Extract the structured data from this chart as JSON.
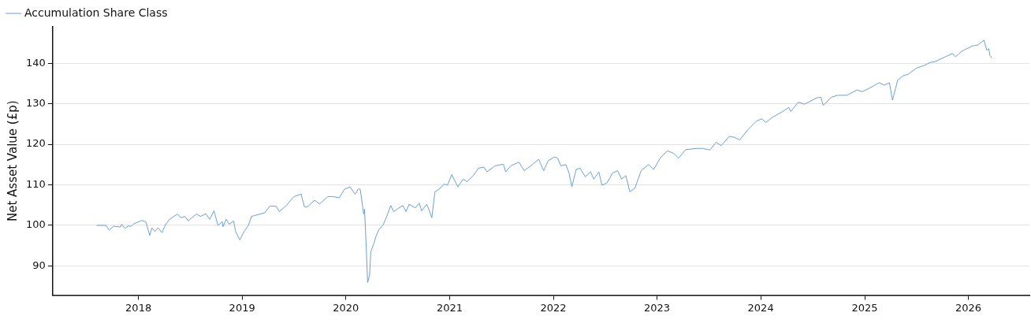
{
  "chart_data": {
    "type": "line",
    "ylabel": "Net Asset Value (£p)",
    "x": [
      "2017-08-07",
      "2017-09-09",
      "2017-09-20",
      "2017-10-05",
      "2017-10-30",
      "2017-11-03",
      "2017-11-14",
      "2017-11-28",
      "2017-12-05",
      "2017-12-16",
      "2018-01-12",
      "2018-01-27",
      "2018-02-10",
      "2018-02-17",
      "2018-02-28",
      "2018-03-11",
      "2018-03-25",
      "2018-04-05",
      "2018-04-20",
      "2018-05-19",
      "2018-05-30",
      "2018-06-14",
      "2018-06-25",
      "2018-07-24",
      "2018-08-08",
      "2018-08-26",
      "2018-09-09",
      "2018-09-24",
      "2018-10-08",
      "2018-10-23",
      "2018-10-26",
      "2018-11-06",
      "2018-11-17",
      "2018-12-02",
      "2018-12-09",
      "2018-12-24",
      "2019-01-08",
      "2019-01-23",
      "2019-02-03",
      "2019-02-17",
      "2019-03-22",
      "2019-04-09",
      "2019-05-01",
      "2019-05-12",
      "2019-06-03",
      "2019-07-02",
      "2019-07-28",
      "2019-08-08",
      "2019-08-19",
      "2019-09-13",
      "2019-10-01",
      "2019-10-30",
      "2019-11-17",
      "2019-12-09",
      "2019-12-27",
      "2020-01-16",
      "2020-02-03",
      "2020-02-14",
      "2020-02-21",
      "2020-03-04",
      "2020-03-07",
      "2020-03-11",
      "2020-03-18",
      "2020-03-25",
      "2020-03-29",
      "2020-04-09",
      "2020-04-16",
      "2020-04-27",
      "2020-05-12",
      "2020-05-27",
      "2020-06-07",
      "2020-06-18",
      "2020-07-06",
      "2020-07-20",
      "2020-07-31",
      "2020-08-11",
      "2020-09-02",
      "2020-09-16",
      "2020-09-24",
      "2020-10-12",
      "2020-10-19",
      "2020-10-30",
      "2020-11-10",
      "2020-11-24",
      "2020-12-13",
      "2020-12-24",
      "2021-01-08",
      "2021-01-30",
      "2021-02-17",
      "2021-03-04",
      "2021-03-25",
      "2021-04-12",
      "2021-05-01",
      "2021-05-12",
      "2021-06-10",
      "2021-07-09",
      "2021-07-17",
      "2021-08-04",
      "2021-09-02",
      "2021-09-20",
      "2021-10-19",
      "2021-11-10",
      "2021-11-28",
      "2021-12-13",
      "2022-01-05",
      "2022-01-16",
      "2022-01-27",
      "2022-02-14",
      "2022-02-25",
      "2022-03-07",
      "2022-03-22",
      "2022-04-05",
      "2022-04-23",
      "2022-05-12",
      "2022-05-23",
      "2022-06-10",
      "2022-06-21",
      "2022-07-09",
      "2022-07-28",
      "2022-08-15",
      "2022-08-29",
      "2022-09-13",
      "2022-09-27",
      "2022-10-15",
      "2022-11-06",
      "2022-12-02",
      "2022-12-20",
      "2023-01-12",
      "2023-02-06",
      "2023-02-28",
      "2023-03-18",
      "2023-04-12",
      "2023-05-23",
      "2023-06-10",
      "2023-07-06",
      "2023-07-28",
      "2023-08-15",
      "2023-09-13",
      "2023-10-01",
      "2023-10-19",
      "2023-11-17",
      "2023-12-16",
      "2024-01-05",
      "2024-01-19",
      "2024-02-10",
      "2024-03-18",
      "2024-04-09",
      "2024-04-16",
      "2024-05-12",
      "2024-06-03",
      "2024-07-17",
      "2024-07-31",
      "2024-08-08",
      "2024-09-05",
      "2024-09-27",
      "2024-10-30",
      "2024-12-05",
      "2024-12-24",
      "2025-01-16",
      "2025-02-21",
      "2025-03-11",
      "2025-03-29",
      "2025-04-09",
      "2025-04-27",
      "2025-05-16",
      "2025-06-03",
      "2025-07-02",
      "2025-07-31",
      "2025-08-19",
      "2025-09-05",
      "2025-10-12",
      "2025-11-06",
      "2025-11-17",
      "2025-12-09",
      "2026-01-16",
      "2026-02-03",
      "2026-02-25",
      "2026-03-07",
      "2026-03-14",
      "2026-03-18",
      "2026-03-25"
    ],
    "series": [
      {
        "name": "Accumulation Share Class",
        "color": "#6a9fdc",
        "values": [
          100,
          100,
          98.8,
          99.8,
          99.6,
          100.3,
          99.3,
          99.9,
          99.7,
          100.4,
          101.2,
          100.9,
          97.5,
          99.4,
          98.5,
          99.4,
          98.2,
          100,
          101.5,
          102.8,
          101.9,
          102.2,
          101.1,
          102.8,
          102.2,
          102.9,
          101.5,
          103.6,
          100,
          100.9,
          99.7,
          101.5,
          100.3,
          101.1,
          98.5,
          96.4,
          98.5,
          100,
          102.2,
          102.5,
          103.1,
          104.8,
          104.7,
          103.4,
          104.7,
          107.1,
          107.7,
          104.6,
          104.6,
          106.2,
          105.3,
          107.1,
          107.1,
          106.8,
          108.9,
          109.5,
          107.7,
          109,
          108.9,
          102.8,
          104,
          97.9,
          85.9,
          87.7,
          93.5,
          95.6,
          97.2,
          99,
          100.2,
          102.7,
          104.9,
          103.4,
          104.3,
          104.9,
          103.4,
          105.2,
          104.3,
          105.5,
          103.6,
          105.2,
          104,
          101.9,
          108.3,
          108.9,
          110.2,
          109.9,
          112.5,
          109.5,
          111.4,
          110.8,
          112.3,
          114.1,
          114.4,
          113.2,
          114.7,
          115.1,
          113.2,
          114.7,
          115.6,
          113.5,
          115,
          116.3,
          113.5,
          115.9,
          116.9,
          116.6,
          114.7,
          115,
          112.9,
          109.5,
          113.8,
          114.1,
          112,
          113.2,
          111.4,
          113.2,
          109.9,
          110.5,
          112.9,
          113.5,
          111.4,
          112.3,
          108.3,
          109.2,
          113.5,
          115,
          113.8,
          116.6,
          118.4,
          117.8,
          116.6,
          118.7,
          119,
          119,
          118.6,
          120.5,
          119.7,
          122,
          121.7,
          121.1,
          123.6,
          125.7,
          126.3,
          125.4,
          126.6,
          128.1,
          129.1,
          128.1,
          130.4,
          129.9,
          131.5,
          131.6,
          129.6,
          131.6,
          132.1,
          132.1,
          133.4,
          133,
          133.8,
          135.2,
          134.6,
          135.2,
          130.9,
          135.8,
          136.9,
          137.3,
          138.8,
          139.5,
          140.2,
          140.4,
          141.6,
          142.4,
          141.6,
          143,
          144.3,
          144.5,
          145.7,
          143.2,
          143.6,
          141.9,
          141.3
        ]
      }
    ],
    "xlim": [
      "2017-03-05",
      "2026-08-04"
    ],
    "xticks": [
      "2018",
      "2019",
      "2020",
      "2021",
      "2022",
      "2023",
      "2024",
      "2025",
      "2026"
    ],
    "ylim": [
      82.8,
      149
    ],
    "yticks": [
      90,
      100,
      110,
      120,
      130,
      140
    ],
    "grid": "y",
    "legend": "top left",
    "marker": "none",
    "line_style": "solid"
  }
}
